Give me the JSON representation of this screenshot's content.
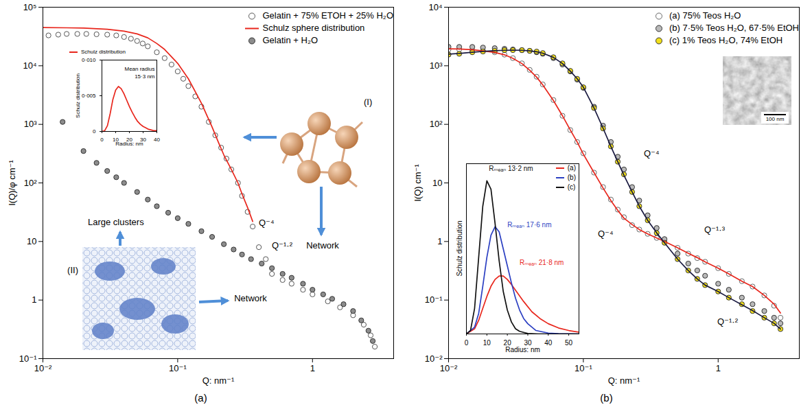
{
  "chart_data": [
    {
      "type": "scatter",
      "title": "(a)",
      "x_label": "Q: nm⁻¹",
      "y_label": "I(Q)/φ cm⁻¹",
      "log": true,
      "xlim": [
        0.01,
        4
      ],
      "ylim": [
        0.1,
        100000
      ],
      "xticks": [
        {
          "value": 0.01,
          "label": "10⁻²"
        },
        {
          "value": 0.1,
          "label": "10⁻¹"
        },
        1
      ],
      "yticks": [
        {
          "value": 0.1,
          "label": "10⁻¹"
        },
        1,
        10,
        {
          "value": 100,
          "label": "10²"
        },
        {
          "value": 1000,
          "label": "10³"
        },
        {
          "value": 10000,
          "label": "10⁴"
        },
        {
          "value": 100000,
          "label": "10⁵"
        }
      ],
      "legend": "top-right",
      "series": [
        {
          "name": "Gelatin + 75% ETOH + 25% H₂O",
          "type": "scatter",
          "marker": "open-circle",
          "color": "#555555",
          "x": [
            0.011,
            0.013,
            0.015,
            0.018,
            0.021,
            0.025,
            0.03,
            0.035,
            0.04,
            0.045,
            0.05,
            0.055,
            0.06,
            0.07,
            0.08,
            0.09,
            0.1,
            0.11,
            0.12,
            0.135,
            0.15,
            0.17,
            0.19,
            0.21,
            0.23,
            0.25,
            0.28,
            0.3,
            0.33,
            0.36,
            0.4,
            0.45,
            0.5,
            0.6,
            0.7,
            0.85,
            1,
            1.3,
            1.6,
            2,
            2.4,
            2.7,
            2.9
          ],
          "values": [
            33000,
            34000,
            35000,
            35000,
            35000,
            34500,
            34000,
            33000,
            31000,
            29000,
            26500,
            24000,
            21500,
            17000,
            13500,
            10500,
            8000,
            6000,
            4500,
            3000,
            2000,
            1100,
            650,
            400,
            260,
            170,
            100,
            60,
            32,
            18,
            8,
            5,
            2.8,
            2.2,
            1.9,
            1.5,
            1.25,
            0.95,
            0.75,
            0.55,
            0.38,
            0.25,
            0.16
          ]
        },
        {
          "name": "Schulz sphere distribution",
          "type": "line",
          "color": "#e8261c",
          "x": [
            0.01,
            0.015,
            0.02,
            0.03,
            0.04,
            0.05,
            0.06,
            0.07,
            0.08,
            0.1,
            0.12,
            0.15,
            0.18,
            0.2,
            0.22,
            0.25,
            0.28,
            0.3,
            0.33,
            0.36
          ],
          "values": [
            45000,
            44500,
            44000,
            42000,
            39000,
            35000,
            30000,
            24000,
            19000,
            11000,
            6000,
            2300,
            900,
            500,
            300,
            170,
            100,
            65,
            38,
            22
          ]
        },
        {
          "name": "Gelatin + H₂O",
          "type": "scatter",
          "marker": "filled-circle",
          "color": "#8c8c8c",
          "x": [
            0.014,
            0.02,
            0.025,
            0.03,
            0.035,
            0.04,
            0.05,
            0.06,
            0.07,
            0.085,
            0.1,
            0.12,
            0.15,
            0.18,
            0.22,
            0.26,
            0.3,
            0.35,
            0.42,
            0.5,
            0.6,
            0.7,
            0.85,
            1,
            1.2,
            1.4,
            1.7,
            2,
            2.3,
            2.6,
            2.8
          ],
          "values": [
            1100,
            350,
            220,
            160,
            125,
            100,
            70,
            52,
            40,
            31,
            25,
            20,
            15,
            12,
            9,
            7.3,
            6,
            5,
            4.2,
            3.5,
            2.8,
            2.4,
            1.9,
            1.5,
            1.25,
            1.05,
            0.85,
            0.65,
            0.45,
            0.3,
            0.2
          ]
        }
      ],
      "annotations": [
        "Q⁻⁴",
        "Q⁻¹·²",
        "Network",
        "Network",
        "Large clusters",
        "(I)",
        "(II)"
      ],
      "inset": {
        "type": "line",
        "x_label": "Radius: nm",
        "y_label": "Schulz distribution",
        "xlim": [
          0,
          40
        ],
        "ylim": [
          0,
          0.01
        ],
        "xticks": [
          0,
          10,
          20,
          30,
          40
        ],
        "yticks": [
          0,
          {
            "value": 0.005,
            "label": "0·005"
          },
          {
            "value": 0.01,
            "label": "0·010"
          }
        ],
        "legend": "top-left",
        "series": [
          {
            "name": "Schulz distribution",
            "color": "#e8261c",
            "x": [
              0,
              2,
              4,
              6,
              8,
              10,
              12,
              14,
              16,
              18,
              20,
              22,
              24,
              26,
              28,
              30,
              32,
              34,
              36,
              38,
              40
            ],
            "values": [
              0,
              0.0001,
              0.0008,
              0.0025,
              0.0045,
              0.0058,
              0.0063,
              0.006,
              0.0053,
              0.0044,
              0.0035,
              0.0027,
              0.002,
              0.0014,
              0.001,
              0.0007,
              0.0005,
              0.0003,
              0.0002,
              0.0001,
              0.0001
            ]
          }
        ],
        "annotations": [
          "Mean radius",
          "15·3 nm"
        ]
      }
    },
    {
      "type": "scatter",
      "title": "(b)",
      "x_label": "Q: nm⁻¹",
      "y_label": "I(Q) cm⁻¹",
      "log": true,
      "xlim": [
        0.01,
        4
      ],
      "ylim": [
        0.01,
        10000
      ],
      "xticks": [
        {
          "value": 0.01,
          "label": "10⁻²"
        },
        {
          "value": 0.1,
          "label": "10⁻¹"
        },
        1
      ],
      "yticks": [
        {
          "value": 0.01,
          "label": "10⁻²"
        },
        {
          "value": 0.1,
          "label": "10⁻¹"
        },
        1,
        10,
        {
          "value": 100,
          "label": "10²"
        },
        {
          "value": 1000,
          "label": "10³"
        },
        {
          "value": 10000,
          "label": "10⁴"
        }
      ],
      "legend": "top-right",
      "series": [
        {
          "name": "(a) 75% Teos H₂O",
          "type": "scatter",
          "marker": "open-circle",
          "color": "#666666",
          "x": [
            0.01,
            0.012,
            0.015,
            0.018,
            0.022,
            0.026,
            0.03,
            0.035,
            0.04,
            0.045,
            0.05,
            0.06,
            0.07,
            0.08,
            0.09,
            0.1,
            0.12,
            0.14,
            0.16,
            0.18,
            0.2,
            0.23,
            0.26,
            0.3,
            0.35,
            0.4,
            0.5,
            0.6,
            0.7,
            0.8,
            1,
            1.2,
            1.5,
            1.8,
            2.2,
            2.6,
            2.9
          ],
          "values": [
            1900,
            1900,
            1850,
            1800,
            1700,
            1550,
            1350,
            1100,
            850,
            650,
            480,
            260,
            140,
            80,
            50,
            32,
            15,
            8.5,
            5.2,
            3.5,
            2.6,
            1.9,
            1.6,
            1.35,
            1.15,
            1.0,
            0.78,
            0.62,
            0.52,
            0.45,
            0.35,
            0.28,
            0.21,
            0.17,
            0.12,
            0.08,
            0.05
          ]
        },
        {
          "name": "(b) 7·5% Teos H₂O, 67·5% EtOH",
          "type": "scatter",
          "marker": "filled-circle",
          "color": "#b9b9b9",
          "x": [
            0.01,
            0.012,
            0.015,
            0.018,
            0.022,
            0.026,
            0.03,
            0.035,
            0.04,
            0.045,
            0.05,
            0.06,
            0.07,
            0.08,
            0.09,
            0.1,
            0.12,
            0.14,
            0.16,
            0.18,
            0.2,
            0.23,
            0.26,
            0.3,
            0.35,
            0.4,
            0.5,
            0.6,
            0.7,
            0.8,
            1,
            1.2,
            1.5,
            1.8,
            2.2,
            2.6,
            2.9
          ],
          "values": [
            2100,
            2100,
            2100,
            2050,
            2000,
            1950,
            1900,
            1850,
            1800,
            1700,
            1600,
            1350,
            1050,
            800,
            580,
            420,
            200,
            95,
            50,
            28,
            17,
            8.5,
            5,
            2.8,
            1.7,
            1.1,
            0.62,
            0.42,
            0.32,
            0.26,
            0.19,
            0.15,
            0.11,
            0.085,
            0.065,
            0.05,
            0.04
          ]
        },
        {
          "name": "(c) 1% Teos H₂O, 74% EtOH",
          "type": "scatter",
          "marker": "filled-circle",
          "color": "#f2e01b",
          "x": [
            0.01,
            0.012,
            0.015,
            0.018,
            0.022,
            0.026,
            0.03,
            0.035,
            0.04,
            0.045,
            0.05,
            0.06,
            0.07,
            0.08,
            0.09,
            0.1,
            0.12,
            0.14,
            0.16,
            0.18,
            0.2,
            0.23,
            0.26,
            0.3,
            0.35,
            0.4,
            0.5,
            0.6,
            0.7,
            0.8,
            1,
            1.2,
            1.5,
            1.8,
            2.2,
            2.6,
            2.9
          ],
          "values": [
            1550,
            1600,
            1700,
            1750,
            1800,
            1850,
            1850,
            1850,
            1800,
            1750,
            1650,
            1400,
            1100,
            820,
            600,
            430,
            190,
            85,
            42,
            23,
            14,
            7,
            4,
            2.3,
            1.4,
            0.95,
            0.5,
            0.32,
            0.23,
            0.18,
            0.14,
            0.11,
            0.085,
            0.065,
            0.05,
            0.04,
            0.032
          ]
        },
        {
          "type": "line",
          "color": "#e8261c",
          "x": [
            0.01,
            0.012,
            0.015,
            0.018,
            0.022,
            0.026,
            0.03,
            0.035,
            0.04,
            0.045,
            0.05,
            0.06,
            0.07,
            0.08,
            0.09,
            0.1,
            0.12,
            0.14,
            0.16,
            0.18,
            0.2,
            0.23,
            0.26,
            0.3,
            0.35,
            0.4,
            0.5,
            0.6,
            0.7,
            0.8,
            1,
            1.2,
            1.5,
            1.8,
            2.2,
            2.6,
            2.9
          ],
          "values": [
            1950,
            1930,
            1880,
            1800,
            1690,
            1540,
            1340,
            1090,
            840,
            640,
            470,
            255,
            140,
            80,
            50,
            31,
            15,
            8.2,
            5,
            3.4,
            2.5,
            1.95,
            1.6,
            1.35,
            1.15,
            1.0,
            0.78,
            0.63,
            0.53,
            0.45,
            0.35,
            0.28,
            0.21,
            0.17,
            0.12,
            0.085,
            0.06
          ]
        },
        {
          "type": "line",
          "color": "#1a1a40",
          "x": [
            0.01,
            0.012,
            0.015,
            0.018,
            0.022,
            0.026,
            0.03,
            0.035,
            0.04,
            0.045,
            0.05,
            0.06,
            0.07,
            0.08,
            0.09,
            0.1,
            0.12,
            0.14,
            0.16,
            0.18,
            0.2,
            0.23,
            0.26,
            0.3,
            0.35,
            0.4,
            0.5,
            0.6,
            0.7,
            0.8,
            1,
            1.2,
            1.5,
            1.8,
            2.2,
            2.6,
            2.9
          ],
          "values": [
            1580,
            1620,
            1700,
            1760,
            1810,
            1840,
            1850,
            1840,
            1800,
            1740,
            1640,
            1390,
            1090,
            810,
            600,
            430,
            190,
            86,
            42,
            23,
            13.5,
            7,
            4,
            2.3,
            1.4,
            0.95,
            0.5,
            0.32,
            0.23,
            0.18,
            0.14,
            0.11,
            0.083,
            0.066,
            0.05,
            0.04,
            0.032
          ]
        }
      ],
      "annotations": [
        "Q⁻⁴",
        "Q⁻⁴",
        "Q⁻¹·³",
        "Q⁻¹·²",
        "100 nm"
      ],
      "inset": {
        "type": "line",
        "x_label": "Radius: nm",
        "y_label": "Schulz distribution",
        "xlim": [
          0,
          55
        ],
        "ylim": [
          0,
          1
        ],
        "xticks": [
          0,
          10,
          20,
          30,
          40,
          50
        ],
        "tick_labels": "x",
        "legend": "top-right",
        "series": [
          {
            "name": "(a)",
            "color": "#e8261c",
            "x": [
              0,
              4,
              6,
              8,
              10,
              12,
              14,
              16,
              18,
              20,
              22,
              25,
              28,
              32,
              36,
              40,
              45,
              50,
              55
            ],
            "values": [
              0,
              0.03,
              0.08,
              0.15,
              0.22,
              0.28,
              0.32,
              0.34,
              0.34,
              0.32,
              0.29,
              0.24,
              0.19,
              0.13,
              0.09,
              0.06,
              0.035,
              0.02,
              0.01
            ]
          },
          {
            "name": "(b)",
            "color": "#2b3fc2",
            "x": [
              0,
              4,
              6,
              8,
              10,
              12,
              14,
              16,
              18,
              20,
              22,
              24,
              26,
              28,
              30,
              34,
              40,
              45,
              50,
              55
            ],
            "values": [
              0,
              0.04,
              0.12,
              0.28,
              0.45,
              0.58,
              0.63,
              0.6,
              0.5,
              0.4,
              0.3,
              0.21,
              0.14,
              0.09,
              0.06,
              0.02,
              0.005,
              0.002,
              0.001,
              0
            ]
          },
          {
            "name": "(c)",
            "color": "#111111",
            "x": [
              0,
              2,
              4,
              6,
              8,
              10,
              12,
              14,
              16,
              18,
              20,
              22,
              24,
              26,
              30,
              35,
              40,
              45,
              50,
              55
            ],
            "values": [
              0,
              0.02,
              0.15,
              0.45,
              0.75,
              0.9,
              0.85,
              0.65,
              0.43,
              0.25,
              0.14,
              0.07,
              0.03,
              0.015,
              0.003,
              0,
              0,
              0,
              0,
              0
            ]
          }
        ],
        "annotations": [
          "Rₘₑₐₙ 13·2 nm",
          "Rₘₑₐₙ 17·6 nm",
          "Rₘₑₐₙ 21·8 nm"
        ]
      }
    }
  ]
}
